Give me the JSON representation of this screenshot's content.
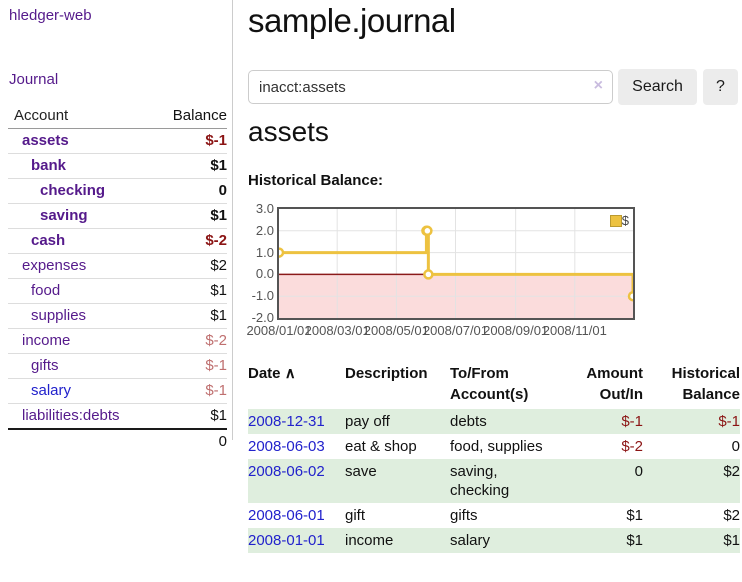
{
  "app": {
    "brand": "hledger-web",
    "nav_journal": "Journal"
  },
  "sidebar": {
    "header": {
      "account": "Account",
      "balance": "Balance"
    },
    "accounts": [
      {
        "name": "assets",
        "balance": "$-1"
      },
      {
        "name": "bank",
        "balance": "$1"
      },
      {
        "name": "checking",
        "balance": "0"
      },
      {
        "name": "saving",
        "balance": "$1"
      },
      {
        "name": "cash",
        "balance": "$-2"
      },
      {
        "name": "expenses",
        "balance": "$2"
      },
      {
        "name": "food",
        "balance": "$1"
      },
      {
        "name": "supplies",
        "balance": "$1"
      },
      {
        "name": "income",
        "balance": "$-2"
      },
      {
        "name": "gifts",
        "balance": "$-1"
      },
      {
        "name": "salary",
        "balance": "$-1"
      },
      {
        "name": "liabilities:debts",
        "balance": "$1"
      }
    ],
    "total": "0"
  },
  "header": {
    "title": "sample.journal"
  },
  "search": {
    "value": "inacct:assets",
    "clear_icon": "×",
    "button": "Search",
    "help_button": "?"
  },
  "account_page": {
    "heading": "assets",
    "chart_label": "Historical Balance:"
  },
  "chart_data": {
    "type": "line",
    "step": true,
    "title": "Historical Balance",
    "series": [
      {
        "name": "$",
        "color": "#edc240",
        "points": [
          {
            "date": "2008-01-01",
            "value": 1
          },
          {
            "date": "2008-06-01",
            "value": 2
          },
          {
            "date": "2008-06-02",
            "value": 2
          },
          {
            "date": "2008-06-03",
            "value": 0
          },
          {
            "date": "2008-12-31",
            "value": -1
          }
        ]
      }
    ],
    "x_range": [
      "2008-01-01",
      "2008-12-31"
    ],
    "xticks": [
      "2008/01/01",
      "2008/03/01",
      "2008/05/01",
      "2008/07/01",
      "2008/09/01",
      "2008/11/01"
    ],
    "yticks": [
      "3.0",
      "2.0",
      "1.0",
      "0.0",
      "-1.0",
      "-2.0"
    ],
    "ylim": [
      -2,
      3
    ],
    "grid": true,
    "legend": {
      "label": "$",
      "position": "top-right"
    },
    "negative_region_color": "#fbdcdc",
    "zero_line_color": "#8b1a1a"
  },
  "register": {
    "columns": {
      "date": "Date",
      "sort_icon": "∧",
      "description": "Description",
      "accounts": "To/From Account(s)",
      "amount": "Amount Out/In",
      "balance": "Historical Balance"
    },
    "rows": [
      {
        "date": "2008-12-31",
        "description": "pay off",
        "accounts": "debts",
        "amount": "$-1",
        "balance": "$-1"
      },
      {
        "date": "2008-06-03",
        "description": "eat & shop",
        "accounts": "food, supplies",
        "amount": "$-2",
        "balance": "0"
      },
      {
        "date": "2008-06-02",
        "description": "save",
        "accounts": "saving,\nchecking",
        "amount": "0",
        "balance": "$2"
      },
      {
        "date": "2008-06-01",
        "description": "gift",
        "accounts": "gifts",
        "amount": "$1",
        "balance": "$2"
      },
      {
        "date": "2008-01-01",
        "description": "income",
        "accounts": "salary",
        "amount": "$1",
        "balance": "$1"
      }
    ]
  }
}
